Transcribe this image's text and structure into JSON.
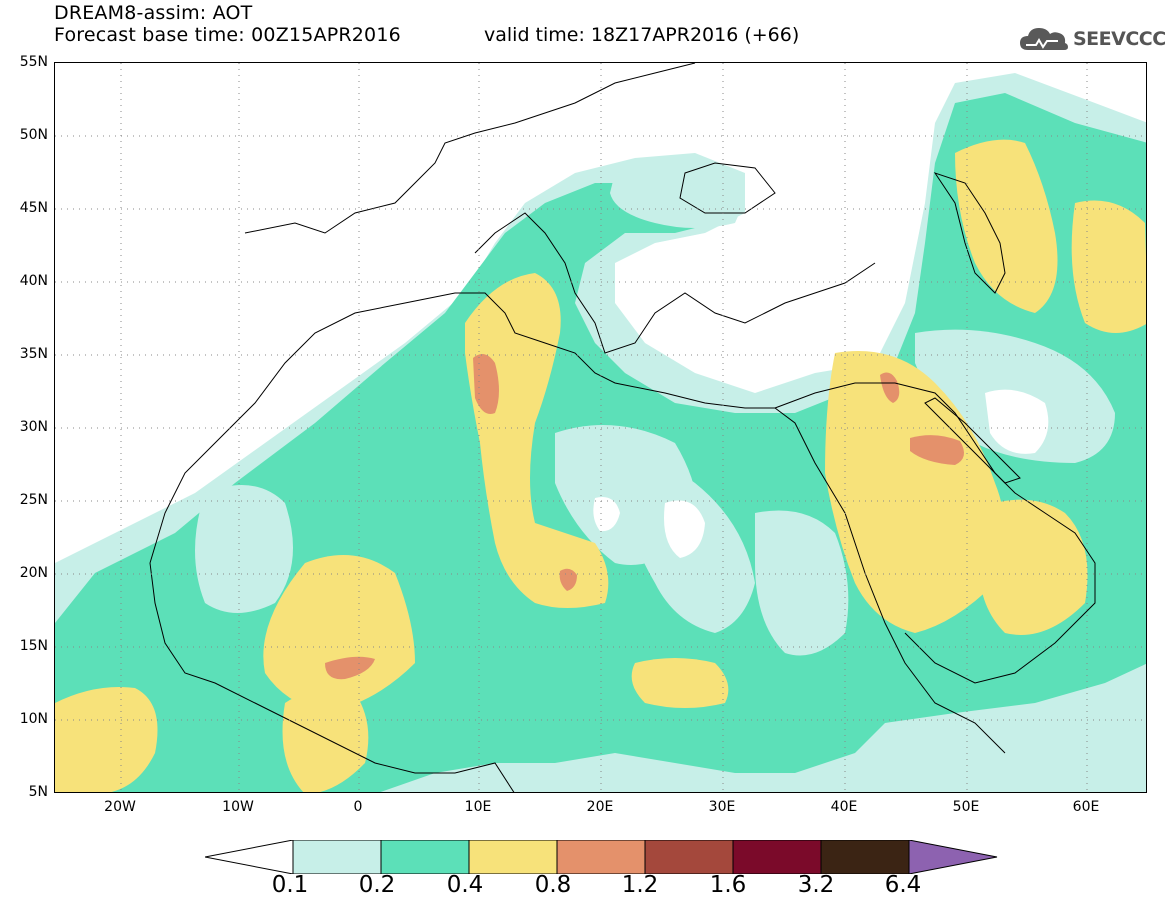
{
  "header": {
    "model_line": "DREAM8-assim: AOT",
    "base_time_line": "Forecast base time: 00Z15APR2016",
    "valid_time_line": "valid time: 18Z17APR2016 (+66)"
  },
  "logo": {
    "text": "SEEVCCC",
    "icon": "cloud-icon"
  },
  "map": {
    "lat_labels": [
      "55N",
      "50N",
      "45N",
      "40N",
      "35N",
      "30N",
      "25N",
      "20N",
      "15N",
      "10N",
      "5N"
    ],
    "lon_labels": [
      "20W",
      "10W",
      "0",
      "10E",
      "20E",
      "30E",
      "40E",
      "50E",
      "60E"
    ],
    "lat_range": [
      5,
      55
    ],
    "lon_range": [
      -25,
      65
    ],
    "grid": "dotted"
  },
  "colorbar": {
    "colors": [
      "#ffffff",
      "#c7efe8",
      "#5ce0b8",
      "#f7e27a",
      "#e4916b",
      "#a4483c",
      "#7b0a2a",
      "#3b2414",
      "#8d62b0"
    ],
    "labels": [
      "0.1",
      "0.2",
      "0.4",
      "0.8",
      "1.2",
      "1.6",
      "3.2",
      "6.4"
    ]
  }
}
